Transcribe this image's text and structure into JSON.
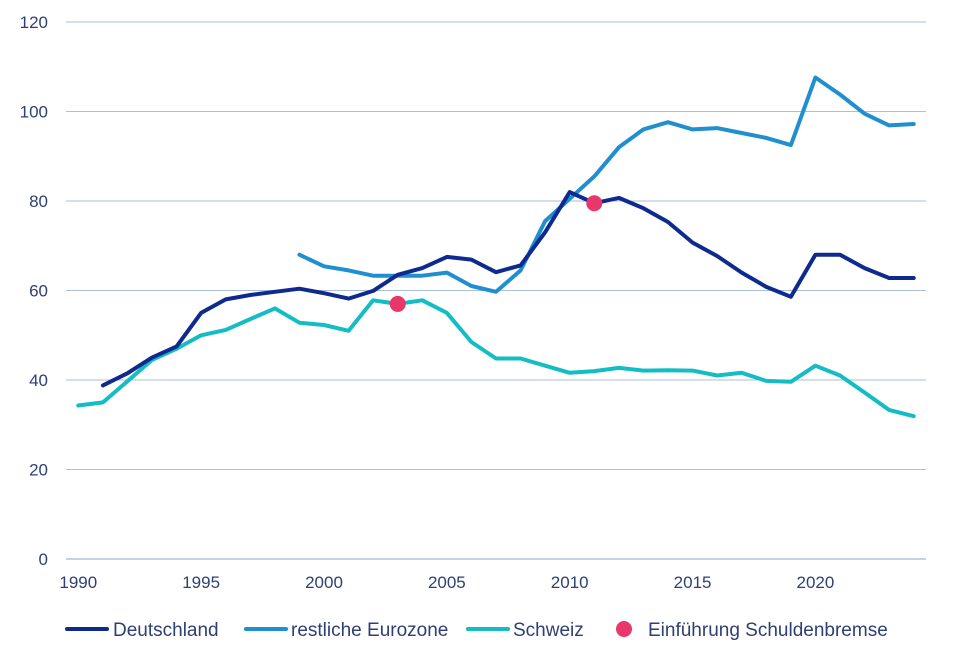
{
  "chart_data": {
    "type": "line",
    "title": "",
    "xlabel": "",
    "ylabel": "",
    "xlim": [
      1989.5,
      2024.5
    ],
    "ylim": [
      0,
      120
    ],
    "x_ticks": [
      1990,
      1995,
      2000,
      2005,
      2010,
      2015,
      2020
    ],
    "y_ticks": [
      0,
      20,
      40,
      60,
      80,
      100,
      120
    ],
    "grid": true,
    "legend_position": "bottom",
    "series": [
      {
        "name": "Deutschland",
        "color": "#0e2a8f",
        "x": [
          1991,
          1992,
          1993,
          1994,
          1995,
          1996,
          1997,
          1998,
          1999,
          2000,
          2001,
          2002,
          2003,
          2004,
          2005,
          2006,
          2007,
          2008,
          2009,
          2010,
          2011,
          2012,
          2013,
          2014,
          2015,
          2016,
          2017,
          2018,
          2019,
          2020,
          2021,
          2022,
          2023,
          2024
        ],
        "y": [
          38.8,
          41.5,
          45.0,
          47.5,
          55.0,
          58.0,
          59.0,
          59.7,
          60.4,
          59.4,
          58.2,
          59.9,
          63.5,
          65.0,
          67.5,
          66.9,
          64.1,
          65.6,
          73.0,
          82.0,
          79.5,
          80.7,
          78.4,
          75.3,
          70.7,
          67.7,
          64.0,
          60.8,
          58.6,
          68.0,
          68.0,
          65.0,
          62.8,
          62.8
        ]
      },
      {
        "name": "restliche Eurozone",
        "color": "#1f8fd0",
        "x": [
          1999,
          2000,
          2001,
          2002,
          2003,
          2004,
          2005,
          2006,
          2007,
          2008,
          2009,
          2010,
          2011,
          2012,
          2013,
          2014,
          2015,
          2016,
          2017,
          2018,
          2019,
          2020,
          2021,
          2022,
          2023,
          2024
        ],
        "y": [
          68.0,
          65.4,
          64.5,
          63.3,
          63.3,
          63.3,
          64.0,
          61.0,
          59.7,
          64.5,
          75.5,
          80.5,
          85.5,
          92.0,
          96.0,
          97.6,
          96.0,
          96.3,
          95.2,
          94.1,
          92.5,
          107.6,
          103.8,
          99.5,
          96.9,
          97.2
        ]
      },
      {
        "name": "Schweiz",
        "color": "#14bcc4",
        "x": [
          1990,
          1991,
          1992,
          1993,
          1994,
          1995,
          1996,
          1997,
          1998,
          1999,
          2000,
          2001,
          2002,
          2003,
          2004,
          2005,
          2006,
          2007,
          2008,
          2009,
          2010,
          2011,
          2012,
          2013,
          2014,
          2015,
          2016,
          2017,
          2018,
          2019,
          2020,
          2021,
          2022,
          2023,
          2024
        ],
        "y": [
          34.3,
          35.0,
          39.7,
          44.5,
          47.0,
          50.0,
          51.2,
          53.6,
          56.0,
          52.8,
          52.3,
          51.0,
          57.8,
          57.0,
          57.8,
          55.0,
          48.5,
          44.8,
          44.8,
          43.2,
          41.6,
          42.0,
          42.7,
          42.1,
          42.2,
          42.1,
          41.0,
          41.6,
          39.8,
          39.6,
          43.2,
          41.0,
          37.2,
          33.3,
          31.9
        ]
      }
    ],
    "markers": {
      "name": "Einführung Schuldenbremse",
      "color": "#e8376b",
      "points": [
        {
          "x": 2003,
          "y": 57.0
        },
        {
          "x": 2011,
          "y": 79.5
        }
      ]
    }
  }
}
